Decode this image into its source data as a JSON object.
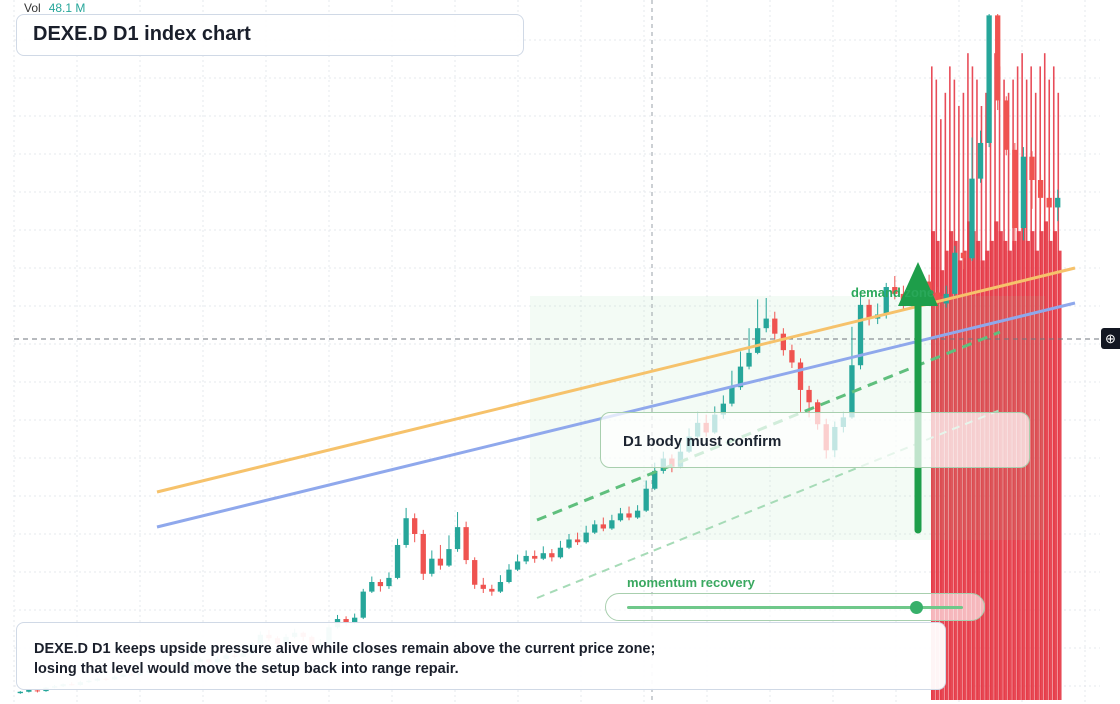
{
  "header": {
    "title": "DEXE.D D1 index chart"
  },
  "volume": {
    "label": "Vol",
    "value": "48.1 M"
  },
  "annotations": {
    "confirm_text": "D1 body must confirm",
    "demand_label": "demand zone",
    "momentum_label": "momentum recovery",
    "momentum_level": 0.86,
    "summary_line1": "DEXE.D D1 keeps upside pressure alive while closes remain above the current price zone;",
    "summary_line2": "losing that level would move the setup back into range repair."
  },
  "colors": {
    "up": "#26a69a",
    "down": "#ef5350",
    "trend_orange": "#f6c26b",
    "trend_blue": "#8fa8ec",
    "support_green": "#5fbf7d",
    "arrow_green": "#1e9e4a",
    "volume_red": "#e53946"
  },
  "chart_data": {
    "type": "candlestick",
    "title": "DEXE.D D1 index chart",
    "timeframe": "D1",
    "ylim": [
      0,
      100
    ],
    "candles": [
      [
        1.0,
        1.2,
        1.3,
        0.9
      ],
      [
        1.2,
        1.5,
        1.6,
        1.1
      ],
      [
        1.4,
        1.3,
        1.5,
        1.1
      ],
      [
        1.3,
        1.8,
        1.9,
        1.2
      ],
      [
        1.8,
        2.0,
        2.2,
        1.7
      ],
      [
        2.0,
        2.3,
        2.4,
        1.9
      ],
      [
        2.3,
        2.2,
        2.6,
        2.1
      ],
      [
        2.2,
        2.6,
        2.8,
        2.1
      ],
      [
        2.6,
        2.8,
        3.0,
        2.5
      ],
      [
        2.8,
        3.1,
        3.2,
        2.7
      ],
      [
        3.1,
        3.0,
        3.3,
        2.8
      ],
      [
        3.0,
        3.4,
        3.6,
        2.9
      ],
      [
        3.4,
        3.7,
        3.9,
        3.3
      ],
      [
        3.7,
        3.6,
        4.0,
        3.5
      ],
      [
        3.6,
        4.0,
        4.2,
        3.5
      ],
      [
        4.0,
        4.3,
        4.5,
        3.9
      ],
      [
        4.3,
        4.2,
        4.6,
        4.0
      ],
      [
        4.2,
        4.6,
        4.8,
        4.1
      ],
      [
        4.6,
        5.2,
        5.6,
        4.5
      ],
      [
        5.2,
        5.0,
        5.4,
        4.8
      ],
      [
        5.0,
        5.6,
        5.9,
        4.9
      ],
      [
        5.6,
        5.9,
        6.1,
        5.5
      ],
      [
        5.9,
        5.5,
        6.0,
        5.2
      ],
      [
        5.5,
        6.0,
        6.3,
        5.4
      ],
      [
        6.0,
        6.5,
        6.8,
        5.9
      ],
      [
        6.5,
        6.3,
        6.9,
        6.1
      ],
      [
        6.3,
        6.8,
        7.1,
        6.2
      ],
      [
        6.8,
        8.2,
        8.5,
        6.7
      ],
      [
        8.2,
        9.5,
        10.0,
        8.0
      ],
      [
        9.5,
        9.0,
        10.2,
        8.6
      ],
      [
        9.0,
        8.2,
        9.3,
        7.8
      ],
      [
        8.2,
        9.2,
        9.6,
        8.0
      ],
      [
        9.2,
        9.8,
        10.4,
        9.0
      ],
      [
        9.8,
        9.2,
        10.0,
        8.6
      ],
      [
        9.2,
        7.8,
        9.4,
        7.2
      ],
      [
        7.8,
        8.2,
        8.9,
        7.5
      ],
      [
        8.2,
        10.6,
        11.0,
        8.1
      ],
      [
        10.6,
        11.8,
        12.4,
        10.4
      ],
      [
        11.8,
        11.2,
        12.2,
        10.8
      ],
      [
        11.2,
        12.0,
        12.6,
        11.0
      ],
      [
        12.0,
        15.8,
        16.2,
        11.8
      ],
      [
        15.8,
        17.2,
        18.0,
        15.6
      ],
      [
        17.2,
        16.6,
        17.6,
        15.8
      ],
      [
        16.6,
        17.8,
        18.6,
        16.2
      ],
      [
        17.8,
        22.6,
        23.5,
        17.6
      ],
      [
        22.6,
        26.5,
        28.0,
        22.2
      ],
      [
        26.5,
        24.2,
        27.2,
        23.0
      ],
      [
        24.2,
        18.4,
        24.8,
        17.5
      ],
      [
        18.4,
        20.6,
        21.8,
        18.0
      ],
      [
        20.6,
        19.6,
        22.6,
        19.0
      ],
      [
        19.6,
        22.0,
        24.0,
        19.4
      ],
      [
        22.0,
        25.2,
        27.4,
        21.6
      ],
      [
        25.2,
        20.4,
        26.0,
        19.8
      ],
      [
        20.4,
        16.8,
        20.8,
        16.2
      ],
      [
        16.8,
        16.2,
        17.8,
        15.6
      ],
      [
        16.2,
        15.8,
        16.8,
        15.2
      ],
      [
        15.8,
        17.2,
        18.2,
        15.6
      ],
      [
        17.2,
        19.0,
        19.8,
        17.0
      ],
      [
        19.0,
        20.2,
        21.2,
        18.8
      ],
      [
        20.2,
        21.0,
        21.8,
        19.8
      ],
      [
        21.0,
        20.6,
        21.8,
        20.0
      ],
      [
        20.6,
        21.4,
        22.4,
        20.4
      ],
      [
        21.4,
        20.8,
        22.0,
        20.2
      ],
      [
        20.8,
        22.2,
        23.2,
        20.6
      ],
      [
        22.2,
        23.4,
        24.2,
        22.0
      ],
      [
        23.4,
        23.0,
        24.4,
        22.6
      ],
      [
        23.0,
        24.4,
        25.4,
        22.8
      ],
      [
        24.4,
        25.6,
        26.2,
        24.2
      ],
      [
        25.6,
        25.0,
        26.6,
        24.6
      ],
      [
        25.0,
        26.2,
        27.0,
        24.8
      ],
      [
        26.2,
        27.2,
        28.0,
        26.0
      ],
      [
        27.2,
        26.6,
        28.2,
        26.2
      ],
      [
        26.6,
        27.6,
        28.4,
        26.4
      ],
      [
        27.6,
        30.8,
        32.0,
        27.4
      ],
      [
        30.8,
        33.4,
        34.6,
        30.6
      ],
      [
        33.4,
        35.2,
        36.2,
        33.0
      ],
      [
        35.2,
        34.0,
        35.8,
        33.2
      ],
      [
        34.0,
        36.2,
        37.4,
        33.8
      ],
      [
        36.2,
        38.4,
        39.6,
        36.0
      ],
      [
        38.4,
        40.4,
        42.0,
        38.2
      ],
      [
        40.4,
        39.0,
        41.6,
        38.4
      ],
      [
        39.0,
        41.6,
        42.8,
        38.8
      ],
      [
        41.6,
        43.2,
        44.4,
        41.0
      ],
      [
        43.2,
        45.6,
        48.0,
        42.8
      ],
      [
        45.6,
        48.6,
        50.8,
        45.2
      ],
      [
        48.6,
        50.6,
        54.2,
        48.2
      ],
      [
        50.6,
        54.2,
        58.4,
        50.4
      ],
      [
        54.2,
        55.6,
        58.6,
        53.6
      ],
      [
        55.6,
        53.4,
        56.6,
        52.6
      ],
      [
        53.4,
        51.0,
        54.2,
        50.2
      ],
      [
        51.0,
        49.2,
        51.8,
        48.4
      ],
      [
        49.2,
        45.2,
        49.8,
        42.0
      ],
      [
        45.2,
        43.4,
        45.8,
        41.2
      ],
      [
        43.4,
        40.2,
        43.8,
        39.4
      ],
      [
        40.2,
        36.4,
        41.0,
        35.2
      ],
      [
        36.4,
        39.8,
        40.6,
        35.4
      ],
      [
        39.8,
        41.2,
        42.0,
        39.0
      ],
      [
        41.2,
        48.8,
        54.4,
        41.0
      ],
      [
        48.8,
        57.6,
        59.4,
        48.2
      ],
      [
        57.6,
        55.6,
        58.4,
        54.6
      ],
      [
        55.6,
        56.2,
        57.8,
        54.8
      ],
      [
        56.2,
        60.2,
        60.8,
        55.6
      ],
      [
        60.2,
        59.2,
        61.8,
        58.4
      ],
      [
        59.2,
        57.6,
        60.4,
        56.8
      ],
      [
        57.6,
        58.4,
        59.6,
        57.0
      ],
      [
        58.4,
        61.0,
        62.4,
        58.0
      ],
      [
        61.0,
        59.4,
        62.0,
        58.6
      ],
      [
        59.4,
        57.8,
        60.2,
        57.0
      ],
      [
        57.8,
        59.2,
        60.4,
        57.2
      ],
      [
        59.2,
        65.2,
        66.2,
        58.8
      ],
      [
        65.2,
        64.4,
        66.0,
        62.8
      ],
      [
        64.4,
        76.0,
        82.0,
        64.0
      ],
      [
        76.0,
        81.2,
        83.0,
        75.4
      ],
      [
        81.2,
        99.8,
        100.0,
        80.6
      ],
      [
        99.8,
        87.4,
        100.0,
        86.0
      ],
      [
        87.4,
        80.2,
        88.0,
        79.4
      ],
      [
        80.2,
        68.8,
        81.2,
        66.4
      ],
      [
        68.8,
        79.2,
        80.6,
        67.0
      ],
      [
        79.2,
        75.8,
        80.0,
        71.6
      ],
      [
        75.8,
        73.2,
        76.6,
        70.8
      ],
      [
        73.2,
        71.8,
        74.8,
        68.4
      ],
      [
        71.8,
        73.2,
        74.4,
        69.8
      ]
    ],
    "volume_bars_m": [
      48,
      47,
      44,
      46,
      48,
      47,
      45,
      46,
      49,
      48,
      47,
      45,
      46,
      47,
      49,
      48,
      47,
      46,
      47,
      48,
      49,
      47,
      48,
      46,
      48,
      49,
      47,
      48,
      46
    ],
    "trendlines": [
      {
        "name": "",
        "role": "upper trend",
        "start_index": 0,
        "end_index": 120
      },
      {
        "name": "",
        "role": "lower trend",
        "start_index": 0,
        "end_index": 120
      },
      {
        "name": "",
        "role": "support",
        "dashed": true
      }
    ]
  }
}
